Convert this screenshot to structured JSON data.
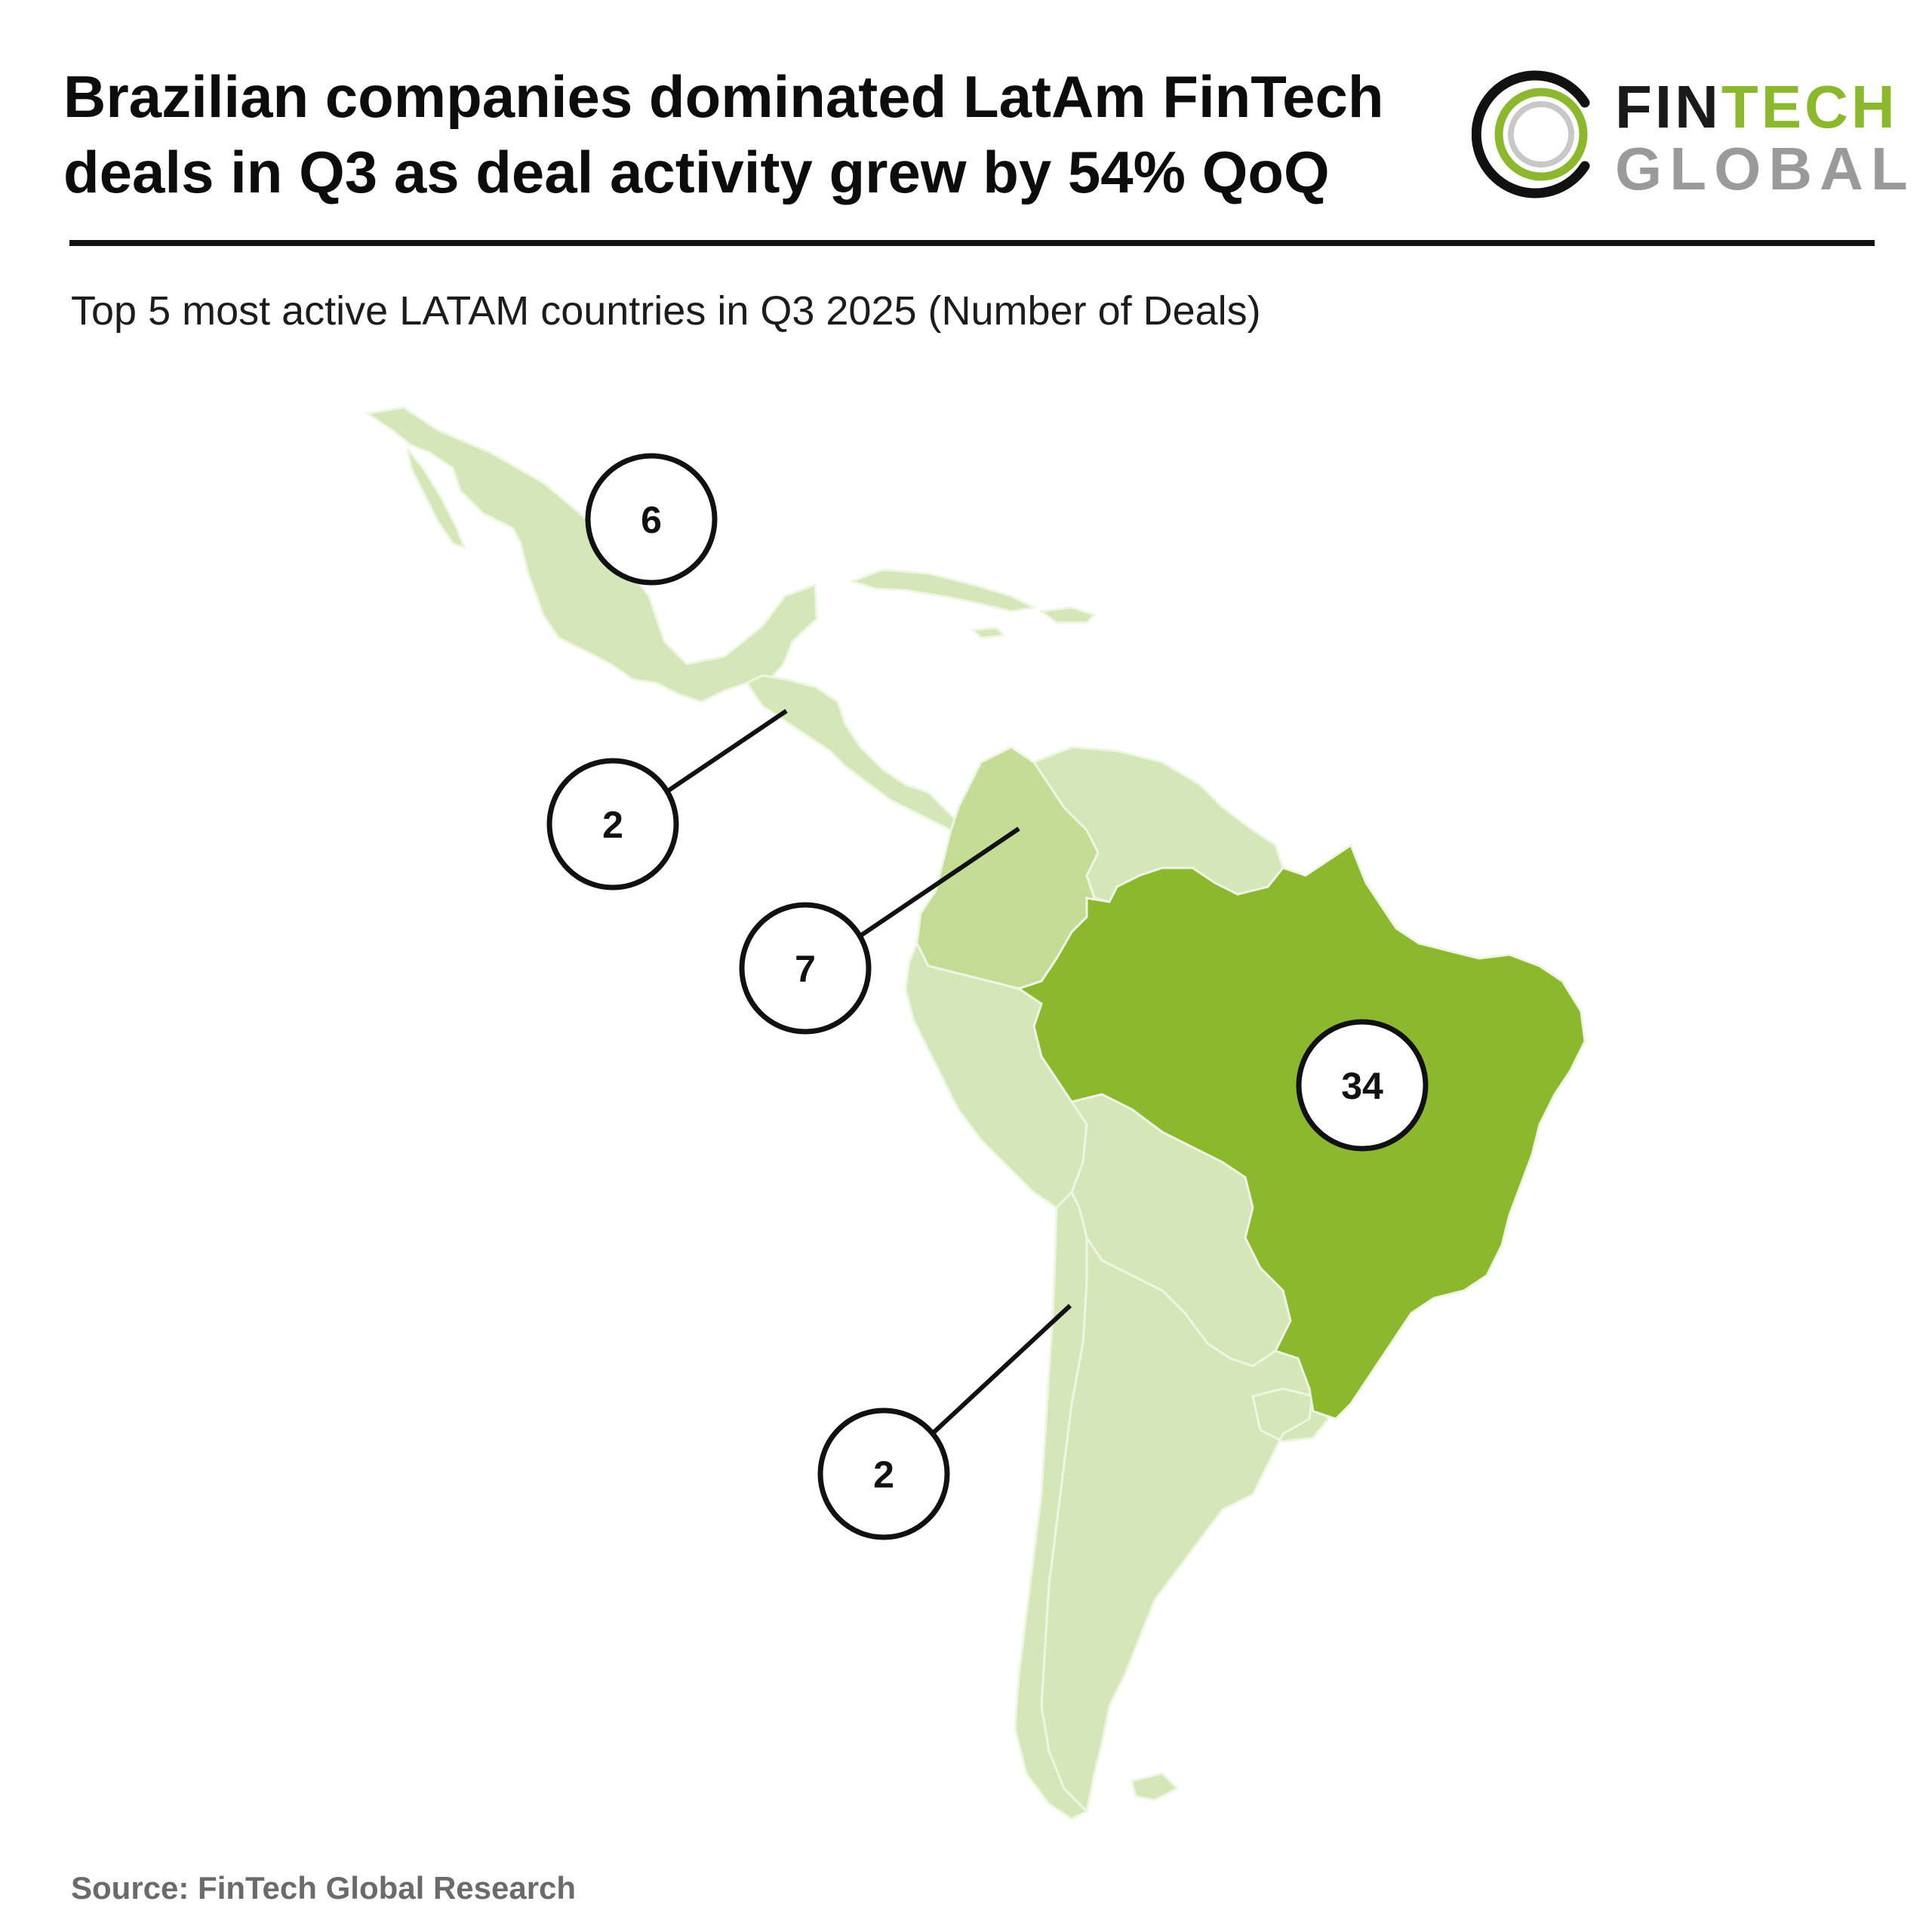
{
  "header": {
    "title_line1": "Brazilian companies dominated LatAm FinTech",
    "title_line2": "deals in Q3 as deal activity grew by 54% QoQ",
    "subtitle": "Top 5 most active LATAM countries in Q3 2025 (Number of Deals)"
  },
  "logo": {
    "word_top_dark": "FIN",
    "word_top_accent": "TECH",
    "word_bottom": "GLOBAL"
  },
  "map": {
    "colors": {
      "brazil": "#8cb82f",
      "highlighted": "#c4dc96",
      "other": "#d5e7b8",
      "border": "#eef5e2",
      "label_circle_fill": "#ffffff",
      "label_circle_stroke": "#111111"
    },
    "deals": [
      {
        "country": "Mexico",
        "value": "6"
      },
      {
        "country": "Central America",
        "value": "2"
      },
      {
        "country": "Colombia",
        "value": "7"
      },
      {
        "country": "Brazil",
        "value": "34"
      },
      {
        "country": "Chile",
        "value": "2"
      }
    ]
  },
  "footer": {
    "source": "Source: FinTech Global Research"
  }
}
